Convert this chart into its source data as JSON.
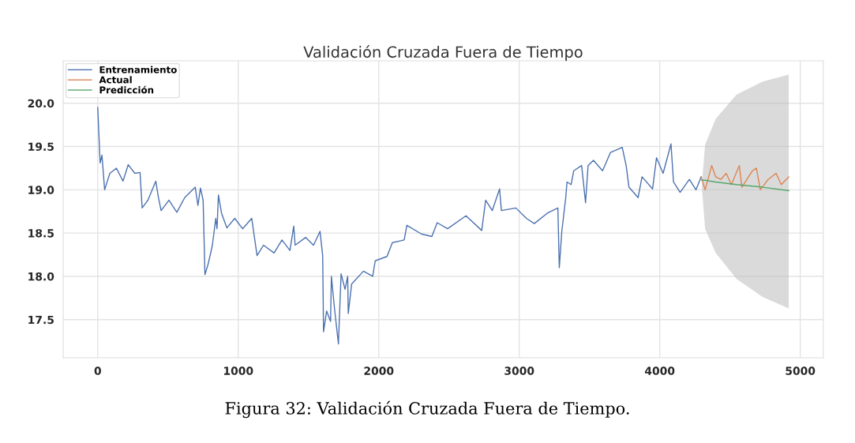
{
  "chart_data": {
    "type": "line",
    "title": "Validación Cruzada Fuera de Tiempo",
    "annotations": [
      "Figura 32: Validación Cruzada Fuera de Tiempo."
    ],
    "series": [
      {
        "name": "Entrenamiento",
        "color": "#4c72b0",
        "x": [
          0,
          17,
          30,
          49,
          86,
          133,
          180,
          217,
          264,
          301,
          316,
          357,
          413,
          432,
          451,
          507,
          563,
          619,
          694,
          713,
          731,
          750,
          763,
          787,
          816,
          840,
          849,
          859,
          881,
          919,
          975,
          1031,
          1096,
          1109,
          1134,
          1180,
          1255,
          1311,
          1368,
          1395,
          1405,
          1480,
          1536,
          1582,
          1601,
          1607,
          1629,
          1657,
          1663,
          1685,
          1713,
          1732,
          1760,
          1779,
          1783,
          1807,
          1891,
          1957,
          1975,
          2059,
          2097,
          2181,
          2200,
          2303,
          2378,
          2416,
          2490,
          2621,
          2733,
          2761,
          2808,
          2860,
          2873,
          2976,
          3051,
          3107,
          3200,
          3275,
          3285,
          3303,
          3331,
          3340,
          3369,
          3388,
          3444,
          3472,
          3490,
          3528,
          3593,
          3649,
          3733,
          3761,
          3781,
          3846,
          3874,
          3949,
          3977,
          4024,
          4080,
          4098,
          4145,
          4211,
          4258,
          4295
        ],
        "values": [
          19.95,
          19.31,
          19.4,
          19.0,
          19.19,
          19.25,
          19.1,
          19.29,
          19.19,
          19.2,
          18.79,
          18.88,
          19.1,
          18.91,
          18.76,
          18.88,
          18.74,
          18.91,
          19.03,
          18.82,
          19.02,
          18.88,
          18.02,
          18.15,
          18.36,
          18.67,
          18.55,
          18.94,
          18.73,
          18.56,
          18.67,
          18.55,
          18.67,
          18.52,
          18.24,
          18.36,
          18.27,
          18.42,
          18.3,
          18.58,
          18.36,
          18.45,
          18.36,
          18.52,
          18.24,
          17.36,
          17.6,
          17.48,
          18.0,
          17.63,
          17.22,
          18.03,
          17.85,
          18.0,
          17.57,
          17.91,
          18.06,
          18.0,
          18.18,
          18.23,
          18.39,
          18.42,
          18.59,
          18.49,
          18.46,
          18.62,
          18.55,
          18.7,
          18.53,
          18.88,
          18.76,
          19.01,
          18.76,
          18.79,
          18.67,
          18.61,
          18.73,
          18.79,
          18.1,
          18.52,
          18.91,
          19.09,
          19.06,
          19.22,
          19.28,
          18.85,
          19.28,
          19.34,
          19.22,
          19.43,
          19.49,
          19.28,
          19.03,
          18.91,
          19.15,
          19.01,
          19.37,
          19.19,
          19.53,
          19.09,
          18.97,
          19.12,
          19.0,
          19.15
        ]
      },
      {
        "name": "Actual",
        "color": "#dd8452",
        "x": [
          4295,
          4323,
          4370,
          4398,
          4435,
          4473,
          4510,
          4566,
          4585,
          4660,
          4688,
          4716,
          4772,
          4828,
          4865,
          4918
        ],
        "values": [
          19.15,
          19.0,
          19.28,
          19.15,
          19.12,
          19.19,
          19.06,
          19.28,
          19.03,
          19.22,
          19.25,
          19.0,
          19.12,
          19.19,
          19.06,
          19.15
        ]
      },
      {
        "name": "Predicción",
        "color": "#55a868",
        "x": [
          4299,
          4323,
          4398,
          4547,
          4734,
          4918
        ],
        "values": [
          19.11,
          19.11,
          19.09,
          19.06,
          19.03,
          18.99
        ],
        "lower": [
          19.05,
          18.55,
          18.27,
          17.97,
          17.76,
          17.63
        ],
        "upper": [
          19.05,
          19.52,
          19.82,
          20.1,
          20.25,
          20.33
        ]
      }
    ],
    "xlim": [
      -246,
      5164
    ],
    "ylim": [
      17.06,
      20.49
    ],
    "xticks": [
      0,
      1000,
      2000,
      3000,
      4000,
      5000
    ],
    "yticks": [
      {
        "value": 17.5,
        "label": "17.5"
      },
      {
        "value": 18.0,
        "label": "18.0"
      },
      {
        "value": 18.5,
        "label": "18.5"
      },
      {
        "value": 19.0,
        "label": "19.0"
      },
      {
        "value": 19.5,
        "label": "19.5"
      },
      {
        "value": 20.0,
        "label": "20.0"
      }
    ],
    "grid": true,
    "legend": "top left",
    "marker": "none",
    "line_style": "solid"
  }
}
